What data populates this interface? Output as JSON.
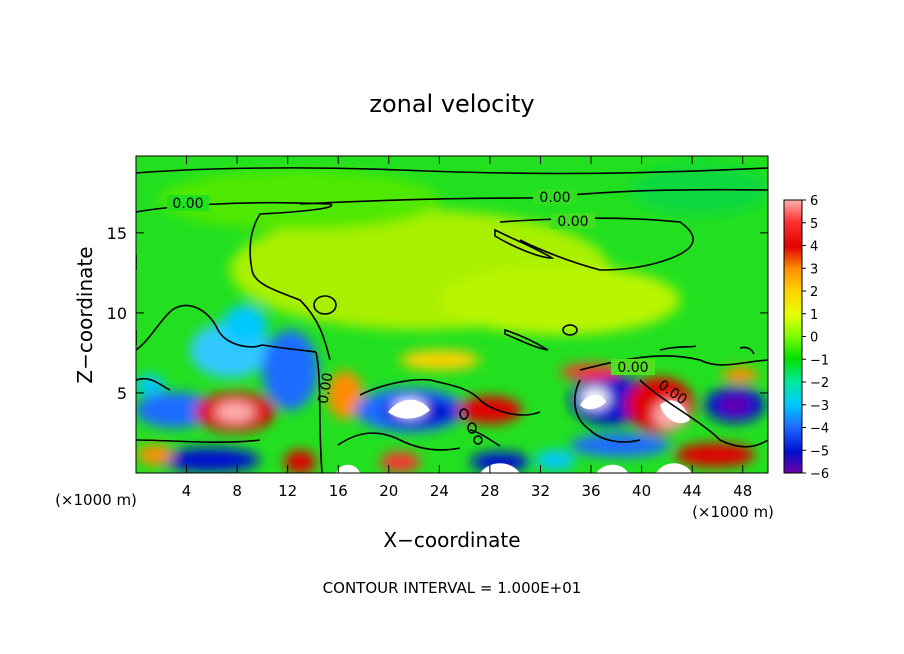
{
  "chart_data": {
    "type": "heatmap",
    "title": "zonal velocity",
    "xlabel": "X−coordinate",
    "ylabel": "Z−coordinate",
    "x_unit_left": "(×1000 m)",
    "x_unit_right": "(×1000 m)",
    "footer": "CONTOUR INTERVAL = 1.000E+01",
    "xlim": [
      0,
      50
    ],
    "ylim": [
      0,
      19.8
    ],
    "x_ticks": [
      4,
      8,
      12,
      16,
      20,
      24,
      28,
      32,
      36,
      40,
      44,
      48
    ],
    "y_ticks": [
      5,
      10,
      15
    ],
    "colorbar": {
      "levels": [
        6,
        5,
        4,
        3,
        2,
        1,
        0,
        -1,
        -2,
        -3,
        -4,
        -5,
        -6
      ],
      "range": [
        -6,
        6
      ],
      "colors": [
        "#ffb0b0",
        "#ff3030",
        "#e00000",
        "#ff8c00",
        "#ffd000",
        "#e8ff00",
        "#7cff00",
        "#00e000",
        "#00e8a0",
        "#00c8ff",
        "#1e6cff",
        "#0010d0",
        "#7000a8"
      ]
    },
    "contour_labels": [
      "0.00",
      "0.00",
      "0.00",
      "0.00",
      "0.00",
      "0.00"
    ]
  },
  "colors": {
    "background": "#00dd00",
    "contour": "#000000"
  }
}
